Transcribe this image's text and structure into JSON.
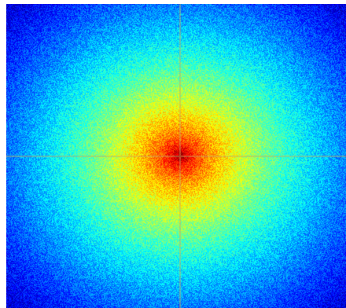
{
  "image": {
    "kind": "2D Fourier magnitude spectrum (log scale)",
    "colormap": "jet",
    "colormap_stops": [
      "#00007f",
      "#0000ff",
      "#007fff",
      "#00ffff",
      "#7fff7f",
      "#ffff00",
      "#ff7f00",
      "#ff0000",
      "#7f0000"
    ],
    "background": "#ffffff",
    "center_axes_visible": true,
    "axis_line_color": "#c8a860"
  }
}
